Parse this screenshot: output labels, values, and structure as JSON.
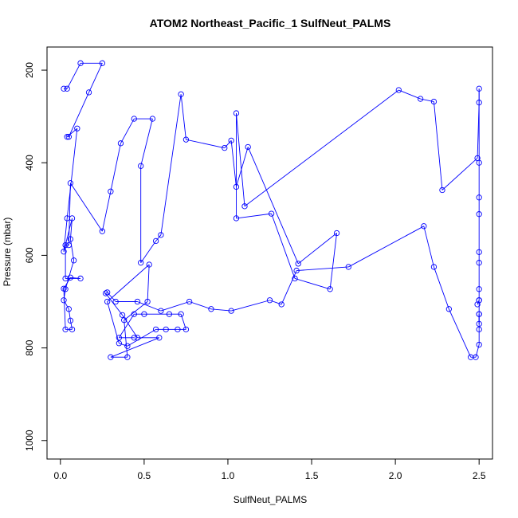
{
  "chart_data": {
    "type": "line",
    "title": "ATOM2 Northeast_Pacific_1 SulfNeut_PALMS",
    "xlabel": "SulfNeut_PALMS",
    "ylabel": "Pressure (mbar)",
    "xlim": [
      -0.08,
      2.58
    ],
    "ylim": [
      1040,
      150
    ],
    "y_reversed": true,
    "xticks": [
      "0.0",
      "0.5",
      "1.0",
      "1.5",
      "2.0",
      "2.5"
    ],
    "xtick_values": [
      0,
      0.5,
      1.0,
      1.5,
      2.0,
      2.5
    ],
    "yticks": [
      "200",
      "400",
      "600",
      "800",
      "1000"
    ],
    "ytick_values": [
      200,
      400,
      600,
      800,
      1000
    ],
    "grid": false,
    "series_color": "#0000ff",
    "series": [
      {
        "marker": "open-circle",
        "x": [
          0.02,
          0.04,
          0.12,
          0.25,
          0.17,
          0.05,
          0.04,
          0.1,
          0.04,
          0.02,
          0.07,
          0.06,
          0.08,
          0.03,
          0.02,
          0.05,
          0.06,
          0.07,
          0.03,
          0.02,
          0.06,
          0.12,
          0.03,
          0.03,
          0.05,
          0.06,
          0.25,
          0.3,
          0.36,
          0.44,
          0.55,
          0.48,
          0.48,
          0.57,
          0.6,
          0.72,
          0.75,
          0.98,
          1.02,
          1.05,
          1.12,
          1.42,
          1.65,
          1.61,
          1.4,
          1.26,
          1.05,
          1.05,
          1.1,
          2.02,
          2.15,
          2.23,
          2.28,
          2.49,
          2.5,
          2.5,
          2.5,
          2.5,
          2.5,
          2.5,
          2.5,
          2.5,
          2.5,
          2.49,
          2.5,
          2.5,
          2.5,
          2.5,
          2.5,
          2.5,
          2.48,
          2.45,
          2.32,
          2.23,
          2.17,
          1.72,
          1.41,
          1.32,
          1.25,
          1.02,
          0.9,
          0.77,
          0.6,
          0.46,
          0.33,
          0.28,
          0.27,
          0.37,
          0.46,
          0.59,
          0.3,
          0.4,
          0.38,
          0.52,
          0.53,
          0.28,
          0.35,
          0.4,
          0.57,
          0.63,
          0.7,
          0.75,
          0.72,
          0.65,
          0.5,
          0.44,
          0.35,
          0.44
        ],
        "y": [
          240,
          240,
          185,
          185,
          248,
          344,
          344,
          326,
          520,
          592,
          520,
          565,
          611,
          673,
          697,
          716,
          741,
          760,
          760,
          672,
          648,
          650,
          650,
          578,
          578,
          444,
          548,
          462,
          358,
          305,
          305,
          407,
          616,
          569,
          556,
          252,
          350,
          368,
          352,
          452,
          366,
          618,
          552,
          673,
          650,
          510,
          520,
          293,
          494,
          243,
          262,
          268,
          459,
          390,
          270,
          240,
          400,
          475,
          511,
          593,
          616,
          673,
          697,
          706,
          697,
          727,
          748,
          727,
          760,
          793,
          820,
          820,
          716,
          625,
          537,
          625,
          633,
          706,
          697,
          720,
          716,
          700,
          720,
          700,
          700,
          680,
          682,
          729,
          778,
          778,
          820,
          820,
          740,
          700,
          620,
          700,
          790,
          796,
          760,
          760,
          760,
          760,
          727,
          727,
          727,
          727,
          778,
          778
        ]
      }
    ]
  }
}
